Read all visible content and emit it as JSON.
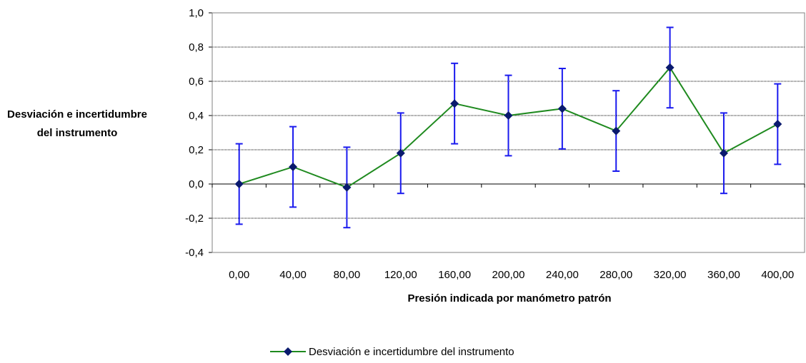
{
  "chart_data": {
    "type": "line",
    "title": "",
    "xlabel": "Presión indicada por manómetro patrón",
    "ylabel": "Desviación e incertidumbre del instrumento",
    "categories": [
      "0,00",
      "40,00",
      "80,00",
      "120,00",
      "160,00",
      "200,00",
      "240,00",
      "280,00",
      "320,00",
      "360,00",
      "400,00"
    ],
    "ylim": [
      -0.4,
      1.0
    ],
    "yticks": [
      1.0,
      0.8,
      0.6,
      0.4,
      0.2,
      0.0,
      -0.2,
      -0.4
    ],
    "ytick_labels": [
      "1,0",
      "0,8",
      "0,6",
      "0,4",
      "0,2",
      "0,0",
      "-0,2",
      "-0,4"
    ],
    "grid": "horizontal dotted",
    "legend_position": "bottom",
    "series": [
      {
        "name": "Desviación e incertidumbre del instrumento",
        "values": [
          0.0,
          0.1,
          -0.02,
          0.18,
          0.47,
          0.4,
          0.44,
          0.31,
          0.68,
          0.18,
          0.35
        ],
        "error": [
          0.235,
          0.235,
          0.235,
          0.235,
          0.235,
          0.235,
          0.235,
          0.235,
          0.235,
          0.235,
          0.235
        ],
        "line_color": "#1f8a1f",
        "marker_color": "#0a1a6e",
        "error_color": "#1a1aee"
      }
    ]
  }
}
